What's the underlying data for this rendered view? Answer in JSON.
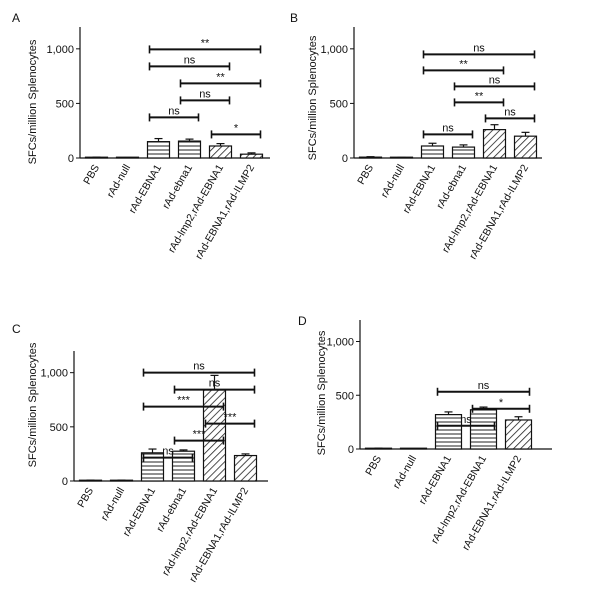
{
  "chart_data": [
    {
      "type": "bar",
      "panel": "A",
      "ylabel": "SFCs/million Splenocytes",
      "ylim": [
        0,
        1200
      ],
      "yticks": [
        "0",
        "500",
        "1,000"
      ],
      "categories": [
        "PBS",
        "rAd-null",
        "rAd-EBNA1",
        "rAd-ebna1",
        "rAd-lmp2,rAd-EBNA1",
        "rAd-EBNA1,rAd-ILMP2"
      ],
      "values": [
        5,
        2,
        150,
        155,
        110,
        35
      ],
      "errors": [
        3,
        2,
        28,
        18,
        22,
        12
      ],
      "patterns": [
        "solid",
        "solid",
        "hline",
        "hline",
        "diag",
        "diag"
      ],
      "significance": [
        {
          "from": 2,
          "to": 5,
          "label": "**"
        },
        {
          "from": 2,
          "to": 4,
          "label": "ns"
        },
        {
          "from": 3,
          "to": 5,
          "label": "**"
        },
        {
          "from": 3,
          "to": 4,
          "label": "ns"
        },
        {
          "from": 2,
          "to": 3,
          "label": "ns"
        },
        {
          "from": 4,
          "to": 5,
          "label": "*"
        }
      ]
    },
    {
      "type": "bar",
      "panel": "B",
      "ylabel": "SFCs/million Splenocytes",
      "ylim": [
        0,
        1200
      ],
      "yticks": [
        "0",
        "500",
        "1,000"
      ],
      "categories": [
        "PBS",
        "rAd-null",
        "rAd-EBNA1",
        "rAd-ebna1",
        "rAd-lmp2,rAd-EBNA1",
        "rAd-EBNA1,rAd-ILMP2"
      ],
      "values": [
        8,
        3,
        110,
        100,
        260,
        200
      ],
      "errors": [
        4,
        2,
        25,
        20,
        45,
        35
      ],
      "patterns": [
        "solid",
        "solid",
        "hline",
        "hline",
        "diag",
        "diag"
      ],
      "significance": [
        {
          "from": 2,
          "to": 5,
          "label": "ns"
        },
        {
          "from": 2,
          "to": 4,
          "label": "**"
        },
        {
          "from": 3,
          "to": 5,
          "label": "ns"
        },
        {
          "from": 3,
          "to": 4,
          "label": "**"
        },
        {
          "from": 4,
          "to": 5,
          "label": "ns"
        },
        {
          "from": 2,
          "to": 3,
          "label": "ns"
        }
      ]
    },
    {
      "type": "bar",
      "panel": "C",
      "ylabel": "SFCs/million Splenocytes",
      "ylim": [
        0,
        1200
      ],
      "yticks": [
        "0",
        "500",
        "1,000"
      ],
      "categories": [
        "PBS",
        "rAd-null",
        "rAd-EBNA1",
        "rAd-ebna1",
        "rAd-lmp2,rAd-EBNA1",
        "rAd-EBNA1,rAd-ILMP2"
      ],
      "values": [
        5,
        5,
        260,
        275,
        840,
        235
      ],
      "errors": [
        3,
        3,
        35,
        12,
        135,
        15
      ],
      "patterns": [
        "solid",
        "solid",
        "hline",
        "hline",
        "diag",
        "diag"
      ],
      "significance": [
        {
          "from": 2,
          "to": 5,
          "label": "ns"
        },
        {
          "from": 3,
          "to": 5,
          "label": "ns"
        },
        {
          "from": 2,
          "to": 4,
          "label": "***"
        },
        {
          "from": 4,
          "to": 5,
          "label": "***"
        },
        {
          "from": 3,
          "to": 4,
          "label": "***"
        },
        {
          "from": 2,
          "to": 3,
          "label": "ns"
        }
      ]
    },
    {
      "type": "bar",
      "panel": "D",
      "ylabel": "SFCs/million Splenocytes",
      "ylim": [
        0,
        1200
      ],
      "yticks": [
        "0",
        "500",
        "1,000"
      ],
      "categories": [
        "PBS",
        "rAd-null",
        "rAd-EBNA1",
        "rAd-lmp2,rAd-EBNA1",
        "rAd-EBNA1,rAd-ILMP2"
      ],
      "values": [
        5,
        2,
        320,
        365,
        270
      ],
      "errors": [
        3,
        2,
        25,
        25,
        30
      ],
      "patterns": [
        "solid",
        "solid",
        "hline",
        "hline",
        "diag"
      ],
      "significance": [
        {
          "from": 2,
          "to": 4,
          "label": "ns"
        },
        {
          "from": 3,
          "to": 4,
          "label": "*"
        },
        {
          "from": 2,
          "to": 3,
          "label": "ns"
        }
      ]
    }
  ]
}
